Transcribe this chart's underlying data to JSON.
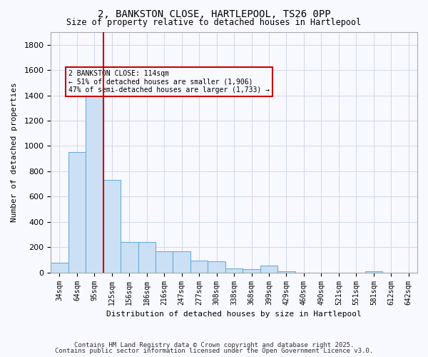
{
  "title_line1": "2, BANKSTON CLOSE, HARTLEPOOL, TS26 0PP",
  "title_line2": "Size of property relative to detached houses in Hartlepool",
  "xlabel": "Distribution of detached houses by size in Hartlepool",
  "ylabel": "Number of detached properties",
  "bins": [
    "34sqm",
    "64sqm",
    "95sqm",
    "125sqm",
    "156sqm",
    "186sqm",
    "216sqm",
    "247sqm",
    "277sqm",
    "308sqm",
    "338sqm",
    "368sqm",
    "399sqm",
    "429sqm",
    "460sqm",
    "490sqm",
    "521sqm",
    "551sqm",
    "581sqm",
    "612sqm",
    "642sqm"
  ],
  "bar_values": [
    75,
    950,
    1420,
    730,
    240,
    240,
    170,
    165,
    95,
    90,
    30,
    25,
    55,
    10,
    0,
    0,
    0,
    0,
    10,
    0,
    0
  ],
  "bar_color": "#cce0f5",
  "bar_edge_color": "#6aaed6",
  "vline_x": 2,
  "vline_color": "#cc0000",
  "annotation_text": "2 BANKSTON CLOSE: 114sqm\n← 51% of detached houses are smaller (1,906)\n47% of semi-detached houses are larger (1,733) →",
  "annotation_box_color": "#cc0000",
  "ylim": [
    0,
    1900
  ],
  "yticks": [
    0,
    200,
    400,
    600,
    800,
    1000,
    1200,
    1400,
    1600,
    1800
  ],
  "footnote1": "Contains HM Land Registry data © Crown copyright and database right 2025.",
  "footnote2": "Contains public sector information licensed under the Open Government Licence v3.0.",
  "bg_color": "#f8f8ff",
  "grid_color": "#d0d8e8"
}
